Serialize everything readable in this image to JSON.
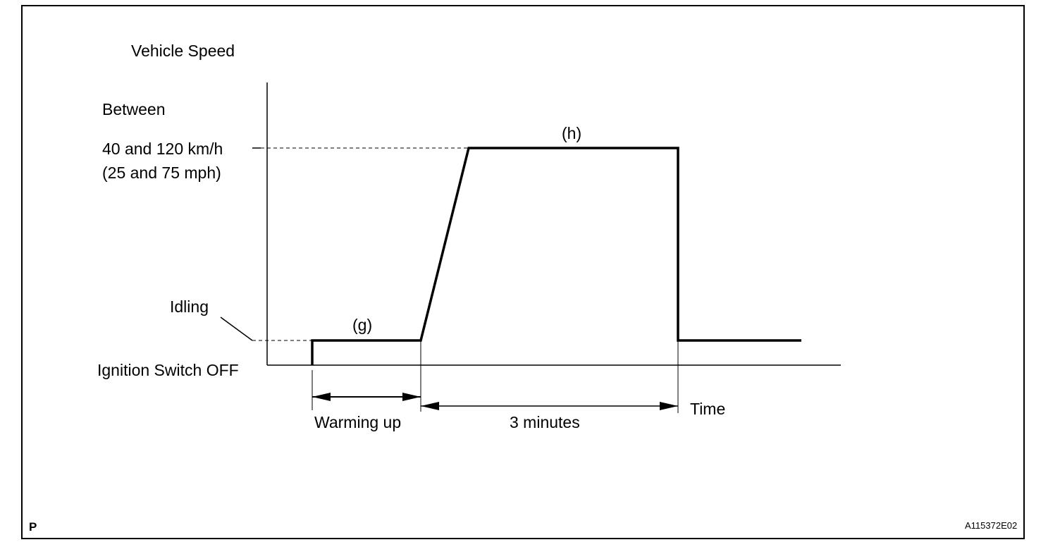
{
  "labels": {
    "y_axis_title": "Vehicle Speed",
    "between": "Between",
    "speed_kmh": "40 and 120 km/h",
    "speed_mph": "(25 and 75 mph)",
    "idling": "Idling",
    "ignition_off": "Ignition Switch OFF",
    "phase_g": "(g)",
    "phase_h": "(h)",
    "warming_up": "Warming up",
    "three_minutes": "3 minutes",
    "time": "Time"
  },
  "footer": {
    "page_marker": "P",
    "figure_id": "A115372E02"
  }
}
